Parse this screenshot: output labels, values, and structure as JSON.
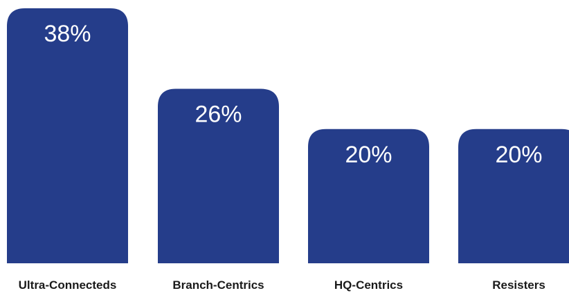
{
  "colors": {
    "bar": "#253d8a",
    "bar_label": "#ffffff",
    "category_label": "#1a1a1a",
    "background": "#ffffff"
  },
  "chart_data": {
    "type": "bar",
    "title": "",
    "xlabel": "",
    "ylabel": "",
    "categories": [
      "Ultra-Connecteds",
      "Branch-Centrics",
      "HQ-Centrics",
      "Resisters"
    ],
    "values": [
      38,
      26,
      20,
      20
    ],
    "data_labels": [
      "38%",
      "26%",
      "20%",
      "20%"
    ],
    "ylim": [
      0,
      38
    ],
    "grid": false,
    "legend": "none"
  }
}
